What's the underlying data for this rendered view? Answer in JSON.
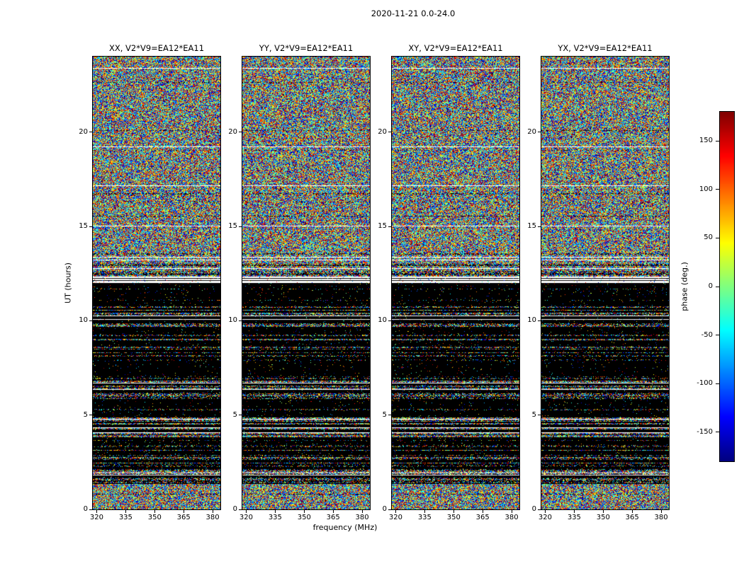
{
  "chart_data": {
    "type": "heatmap",
    "title": "2020-11-21 0.0-24.0",
    "xlabel": "frequency (MHz)",
    "ylabel": "UT (hours)",
    "panels": [
      {
        "polarization": "XX",
        "title": "XX, V2*V9=EA12*EA11"
      },
      {
        "polarization": "YY",
        "title": "YY, V2*V9=EA12*EA11"
      },
      {
        "polarization": "XY",
        "title": "XY, V2*V9=EA12*EA11"
      },
      {
        "polarization": "YX",
        "title": "YX, V2*V9=EA12*EA11"
      }
    ],
    "x_ticks": [
      320,
      335,
      350,
      365,
      380
    ],
    "x_range": [
      318,
      384
    ],
    "y_ticks": [
      0,
      5,
      10,
      15,
      20
    ],
    "y_range": [
      0,
      24
    ],
    "colorbar": {
      "label": "phase (deg.)",
      "ticks": [
        150,
        100,
        50,
        0,
        -50,
        -100,
        -150
      ],
      "range": [
        -180,
        180
      ],
      "colormap": "jet"
    },
    "content_note": "random interferometric phase noise, uniform in [-180,180] deg; lower half (UT ~1.3-12h) mostly flagged black with thin colored stripe rows and occasional white flagged rows; solid black band ~11-12h; white gap at ~12h; upper half dense color noise with occasional white flagged rows",
    "noise_seed": 20201121,
    "time_structure": [
      {
        "from": 0.0,
        "to": 1.35,
        "style": "dense"
      },
      {
        "from": 1.35,
        "to": 10.95,
        "style": "sparse"
      },
      {
        "from": 10.95,
        "to": 12.0,
        "style": "black"
      },
      {
        "from": 12.0,
        "to": 12.35,
        "style": "white"
      },
      {
        "from": 12.35,
        "to": 13.6,
        "style": "stripey"
      },
      {
        "from": 13.6,
        "to": 24.0,
        "style": "dense"
      }
    ]
  }
}
